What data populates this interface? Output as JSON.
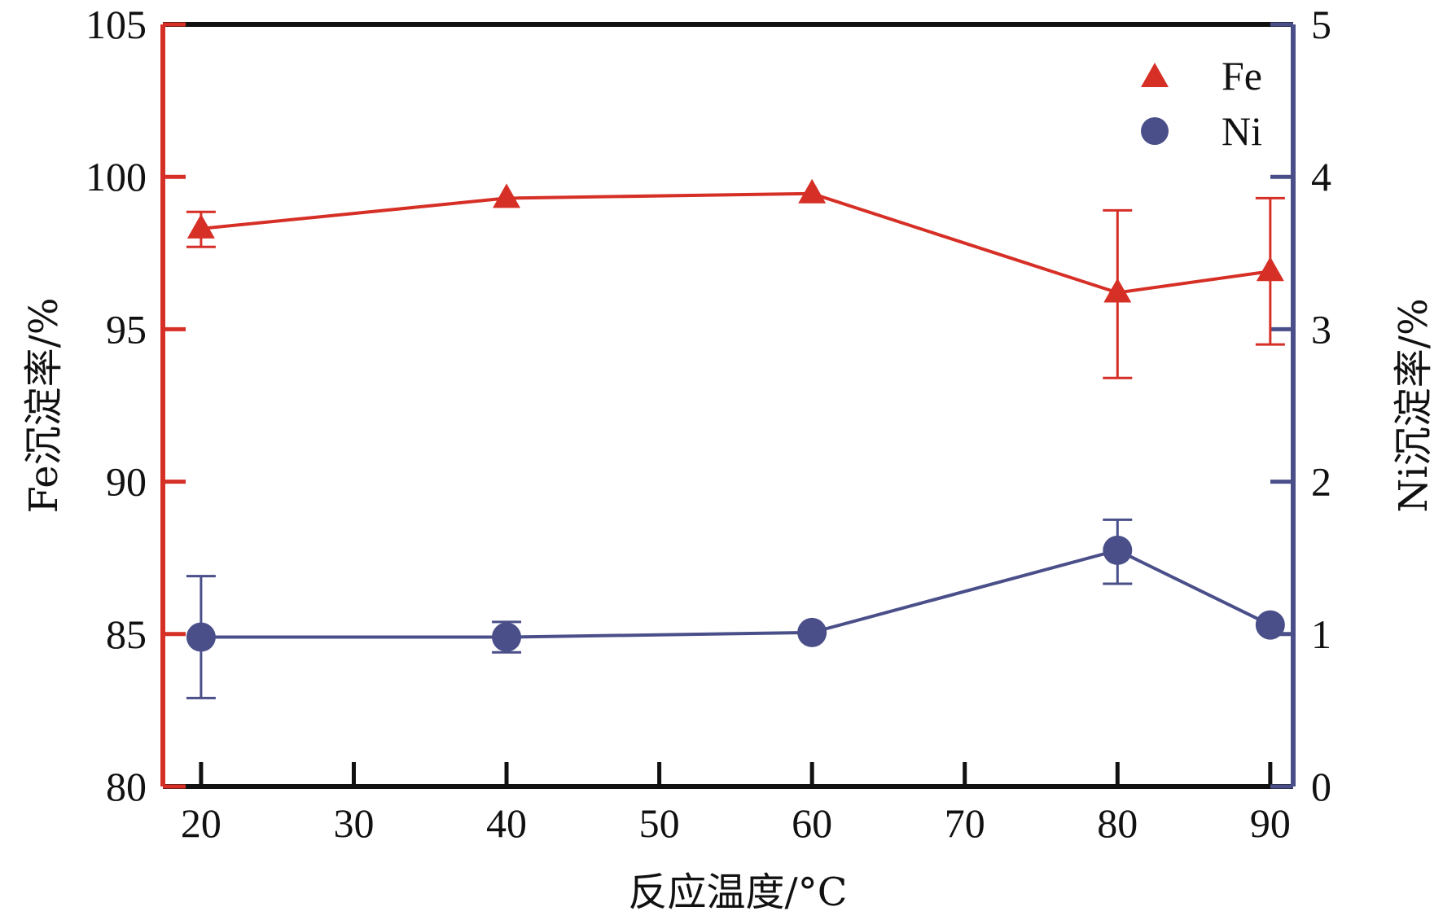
{
  "chart_data": {
    "type": "line",
    "xlabel": "反应温度/°C",
    "ylabel_left": "Fe沉淀率/%",
    "ylabel_right": "Ni沉淀率/%",
    "x_ticks": [
      20,
      30,
      40,
      50,
      60,
      70,
      80,
      90
    ],
    "x_range": [
      17.5,
      91.5
    ],
    "y_left_ticks": [
      80,
      85,
      90,
      95,
      100,
      105
    ],
    "y_left_range": [
      80,
      105
    ],
    "y_right_ticks": [
      0,
      1,
      2,
      3,
      4,
      5
    ],
    "y_right_range": [
      0,
      5
    ],
    "legend_position": "top-right",
    "grid": false,
    "series": [
      {
        "name": "Fe",
        "axis": "left",
        "marker": "triangle",
        "color": "#d62f26",
        "x": [
          20,
          40,
          60,
          80,
          90
        ],
        "y": [
          98.3,
          99.3,
          99.45,
          96.2,
          96.9
        ],
        "err_low": [
          97.7,
          99.3,
          99.45,
          93.4,
          94.5
        ],
        "err_high": [
          98.85,
          99.3,
          99.45,
          98.9,
          99.3
        ]
      },
      {
        "name": "Ni",
        "axis": "right",
        "marker": "circle",
        "color": "#4a4f8a",
        "x": [
          20,
          40,
          60,
          80,
          90
        ],
        "y": [
          0.98,
          0.98,
          1.01,
          1.55,
          1.06
        ],
        "err_low": [
          0.58,
          0.88,
          1.01,
          1.33,
          1.06
        ],
        "err_high": [
          1.38,
          1.08,
          1.01,
          1.75,
          1.06
        ]
      }
    ]
  }
}
